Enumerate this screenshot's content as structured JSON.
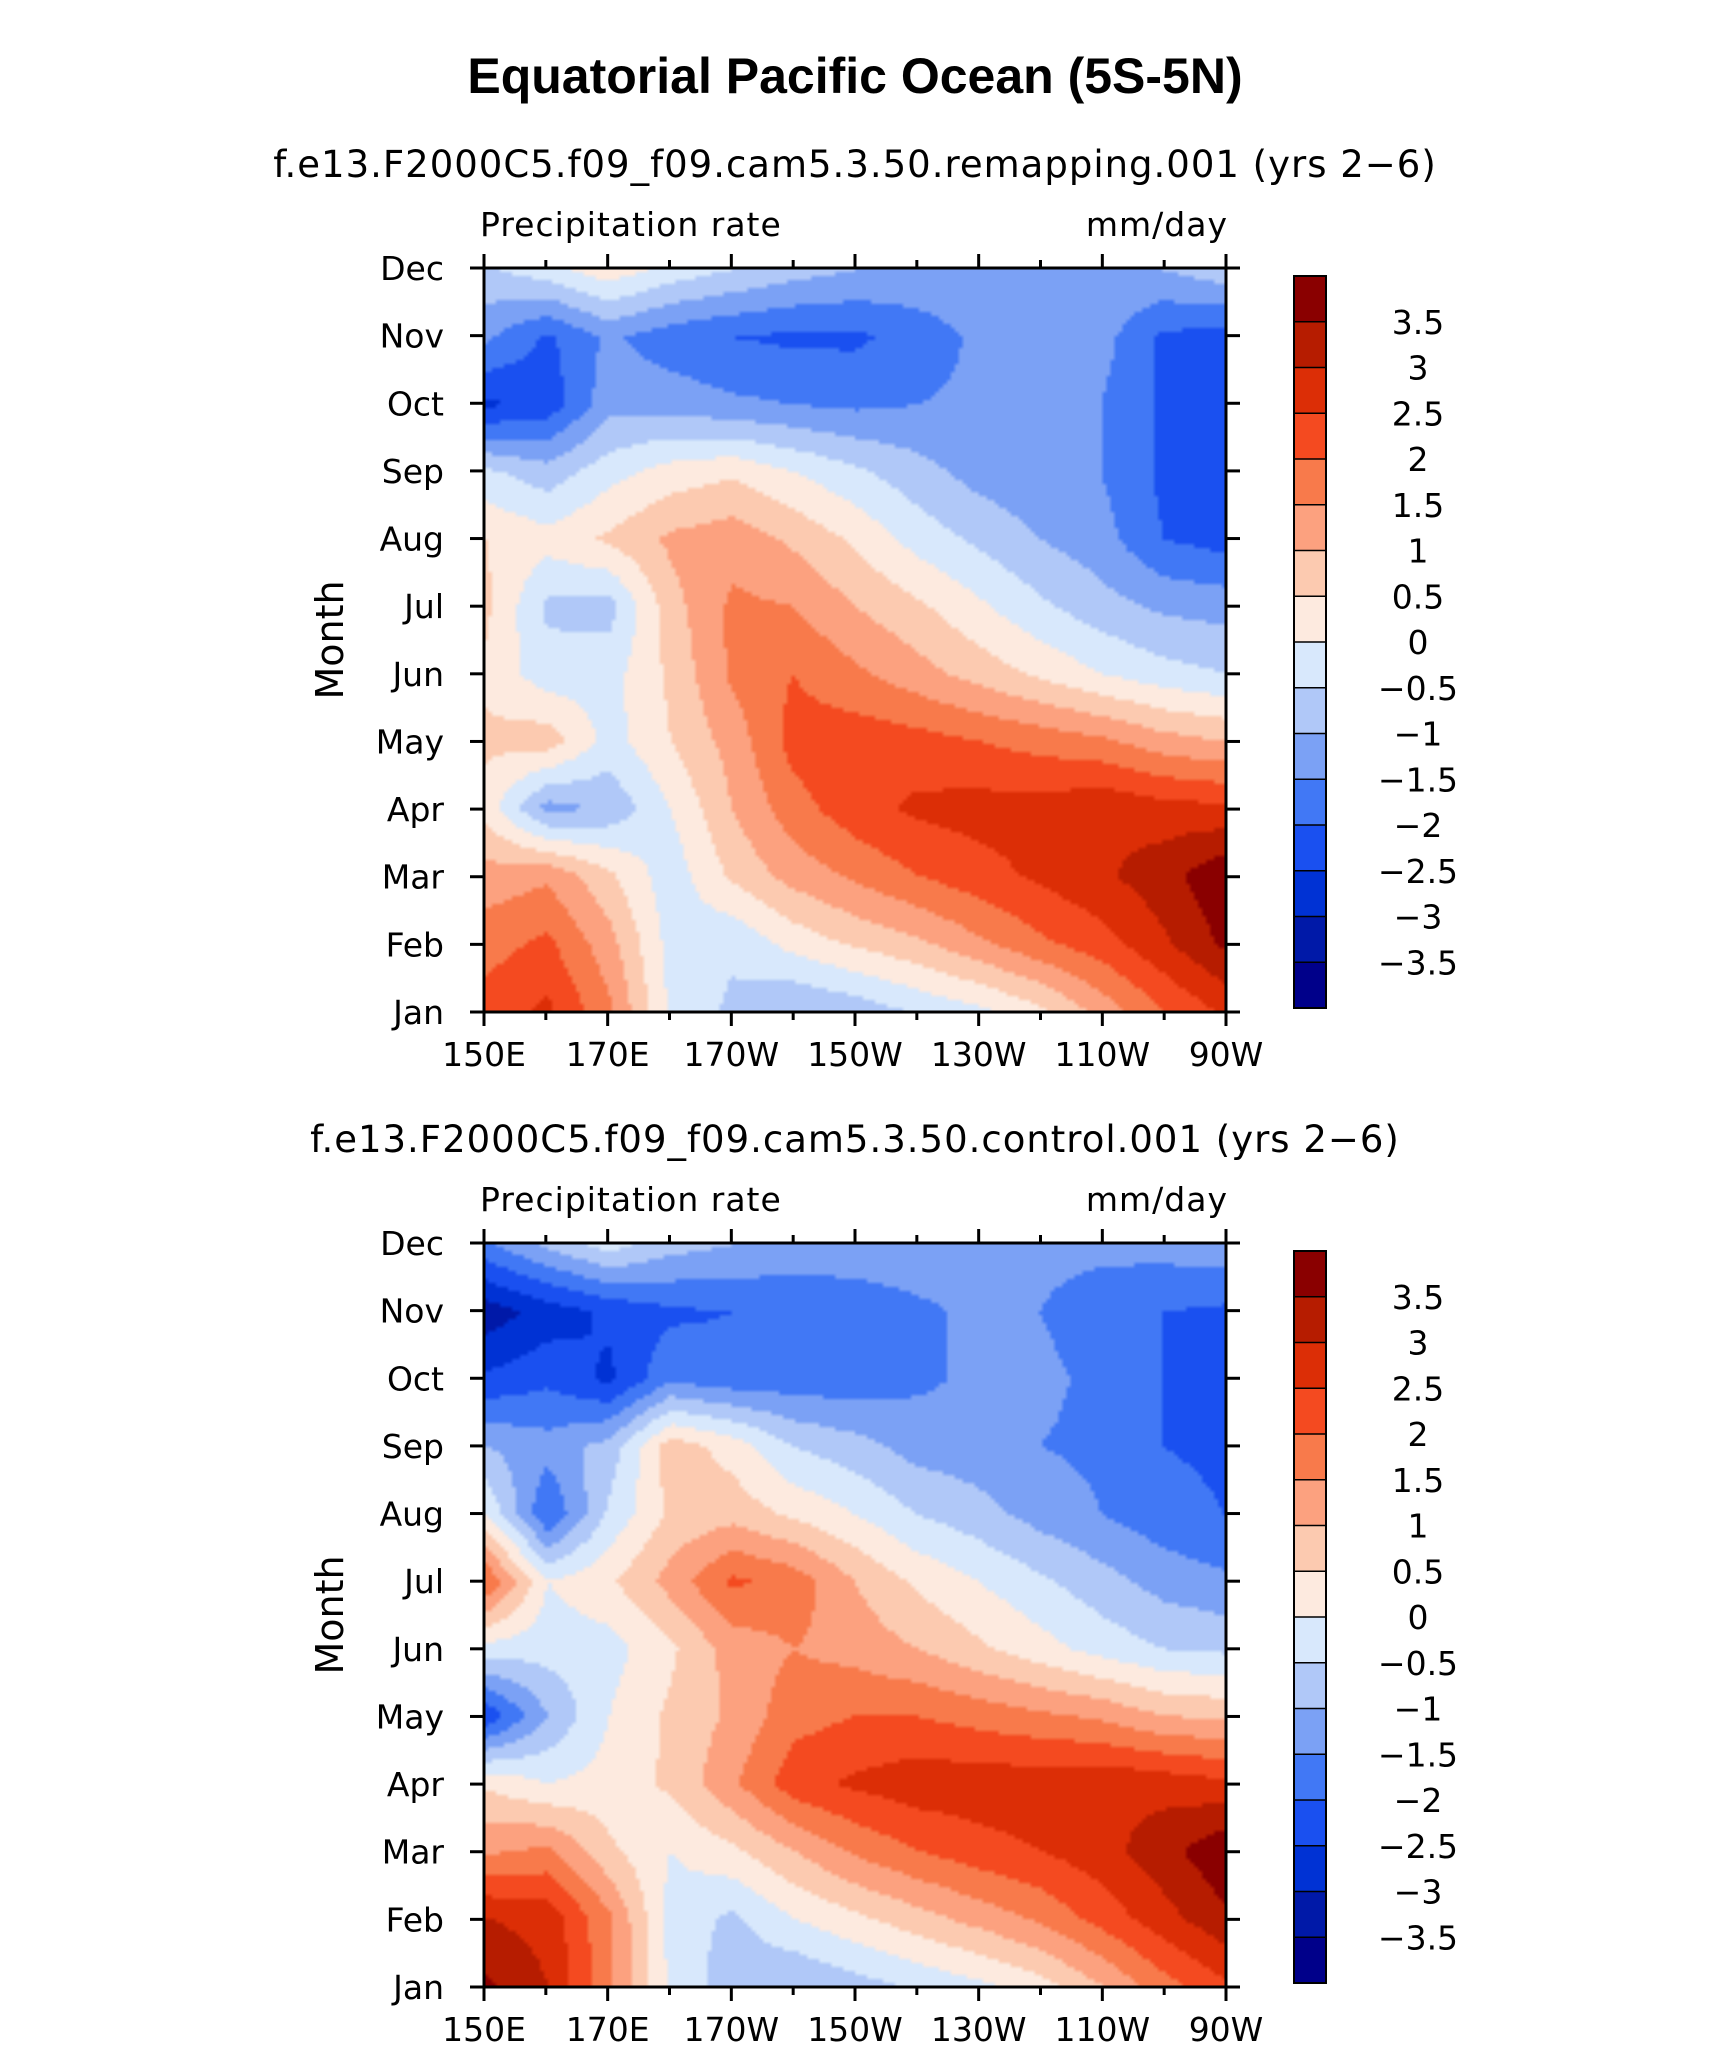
{
  "figure": {
    "title": "Equatorial Pacific Ocean (5S-5N)"
  },
  "colors": {
    "levels": [
      "#00008a",
      "#0019a8",
      "#0032d4",
      "#1a50f0",
      "#4178f5",
      "#7ba1f5",
      "#b0c8f8",
      "#d8e8fc",
      "#fdeadf",
      "#fccab0",
      "#fca17f",
      "#f87a4b",
      "#f44a20",
      "#dc2e06",
      "#b61c00",
      "#8a0000"
    ]
  },
  "chart_data": [
    {
      "type": "heatmap",
      "subtitle": "f.e13.F2000C5.f09_f09.cam5.3.50.remapping.001 (yrs 2−6)",
      "variable_label": "Precipitation rate",
      "units_label": "mm/day",
      "ylabel": "Month",
      "xlabel": "",
      "x_ticks": [
        "150E",
        "170E",
        "170W",
        "150W",
        "130W",
        "110W",
        "90W"
      ],
      "x_range": [
        "150E",
        "90W"
      ],
      "y_ticks": [
        "Jan",
        "Feb",
        "Mar",
        "Apr",
        "May",
        "Jun",
        "Jul",
        "Aug",
        "Sep",
        "Oct",
        "Nov",
        "Dec"
      ],
      "colorbar_levels": [
        -3.5,
        -3,
        -2.5,
        -2,
        -1.5,
        -1,
        -0.5,
        0,
        0.5,
        1,
        1.5,
        2,
        2.5,
        3,
        3.5
      ],
      "colorbar_labels": [
        "3.5",
        "3",
        "2.5",
        "2",
        "1.5",
        "1",
        "0.5",
        "0",
        "−0.5",
        "−1",
        "−1.5",
        "−2",
        "−2.5",
        "−3",
        "−3.5"
      ],
      "grid_lon": [
        150,
        160,
        170,
        180,
        190,
        200,
        210,
        220,
        230,
        240,
        250,
        260,
        270
      ],
      "grid_month": [
        "Jan",
        "Feb",
        "Mar",
        "Apr",
        "May",
        "Jun",
        "Jul",
        "Aug",
        "Sep",
        "Oct",
        "Nov",
        "Dec"
      ],
      "values": [
        [
          2.2,
          2.6,
          1.6,
          -0.1,
          -0.6,
          -1.0,
          -0.8,
          -0.4,
          -0.1,
          0.4,
          1.2,
          2.0,
          2.6
        ],
        [
          1.8,
          2.1,
          1.2,
          -0.2,
          -0.4,
          0.2,
          0.6,
          0.9,
          1.4,
          1.9,
          2.3,
          2.9,
          3.6
        ],
        [
          1.2,
          1.4,
          0.6,
          -0.3,
          0.6,
          1.2,
          1.6,
          2.0,
          2.3,
          2.6,
          2.9,
          3.3,
          3.9
        ],
        [
          0.3,
          -1.2,
          -0.9,
          0.0,
          1.0,
          1.8,
          2.3,
          2.6,
          2.7,
          2.7,
          2.9,
          2.7,
          2.6
        ],
        [
          0.6,
          0.8,
          -0.2,
          0.5,
          1.2,
          2.2,
          2.3,
          2.2,
          2.0,
          1.8,
          1.6,
          1.2,
          1.0
        ],
        [
          0.4,
          -0.3,
          -0.2,
          0.6,
          1.6,
          2.0,
          1.6,
          1.2,
          0.8,
          0.4,
          0.0,
          -0.3,
          -0.5
        ],
        [
          0.6,
          -0.6,
          -0.7,
          0.8,
          1.6,
          1.5,
          1.0,
          0.6,
          0.1,
          -0.4,
          -0.8,
          -1.1,
          -1.2
        ],
        [
          0.5,
          0.2,
          0.6,
          1.1,
          1.3,
          0.9,
          0.4,
          -0.2,
          -0.6,
          -1.0,
          -1.3,
          -2.0,
          -2.2
        ],
        [
          -0.4,
          -0.8,
          -0.2,
          0.2,
          0.4,
          0.0,
          -0.4,
          -0.8,
          -1.2,
          -1.4,
          -1.5,
          -2.1,
          -2.3
        ],
        [
          -2.6,
          -2.3,
          -1.2,
          -1.2,
          -1.4,
          -1.5,
          -1.6,
          -1.5,
          -1.4,
          -1.4,
          -1.5,
          -2.1,
          -2.3
        ],
        [
          -1.4,
          -2.1,
          -1.4,
          -1.8,
          -2.0,
          -2.1,
          -2.1,
          -1.8,
          -1.4,
          -1.3,
          -1.3,
          -2.1,
          -2.2
        ],
        [
          -0.6,
          -0.2,
          0.3,
          -0.2,
          -0.5,
          -0.8,
          -1.0,
          -1.1,
          -1.1,
          -1.1,
          -1.1,
          -1.0,
          -0.7
        ]
      ]
    },
    {
      "type": "heatmap",
      "subtitle": "f.e13.F2000C5.f09_f09.cam5.3.50.control.001 (yrs 2−6)",
      "variable_label": "Precipitation rate",
      "units_label": "mm/day",
      "ylabel": "Month",
      "xlabel": "",
      "x_ticks": [
        "150E",
        "170E",
        "170W",
        "150W",
        "130W",
        "110W",
        "90W"
      ],
      "x_range": [
        "150E",
        "90W"
      ],
      "y_ticks": [
        "Jan",
        "Feb",
        "Mar",
        "Apr",
        "May",
        "Jun",
        "Jul",
        "Aug",
        "Sep",
        "Oct",
        "Nov",
        "Dec"
      ],
      "colorbar_levels": [
        -3.5,
        -3,
        -2.5,
        -2,
        -1.5,
        -1,
        -0.5,
        0,
        0.5,
        1,
        1.5,
        2,
        2.5,
        3,
        3.5
      ],
      "colorbar_labels": [
        "3.5",
        "3",
        "2.5",
        "2",
        "1.5",
        "1",
        "0.5",
        "0",
        "−0.5",
        "−1",
        "−1.5",
        "−2",
        "−2.5",
        "−3",
        "−3.5"
      ],
      "grid_lon": [
        150,
        160,
        170,
        180,
        190,
        200,
        210,
        220,
        230,
        240,
        250,
        260,
        270
      ],
      "grid_month": [
        "Jan",
        "Feb",
        "Mar",
        "Apr",
        "May",
        "Jun",
        "Jul",
        "Aug",
        "Sep",
        "Oct",
        "Nov",
        "Dec"
      ],
      "values": [
        [
          3.6,
          3.0,
          1.6,
          -0.1,
          -0.8,
          -1.0,
          -0.7,
          -0.4,
          -0.1,
          0.3,
          1.0,
          1.8,
          2.4
        ],
        [
          3.0,
          2.8,
          1.6,
          -0.2,
          -0.6,
          0.0,
          0.4,
          0.8,
          1.2,
          1.6,
          2.2,
          2.8,
          3.4
        ],
        [
          1.4,
          1.6,
          0.6,
          0.0,
          0.4,
          1.0,
          1.6,
          2.0,
          2.3,
          2.5,
          2.8,
          3.3,
          3.9
        ],
        [
          0.4,
          0.0,
          0.2,
          0.6,
          1.4,
          2.3,
          2.6,
          2.8,
          2.8,
          2.8,
          2.9,
          2.8,
          2.6
        ],
        [
          -2.4,
          -1.0,
          0.0,
          0.6,
          1.1,
          1.8,
          2.0,
          2.0,
          1.8,
          1.6,
          1.4,
          1.0,
          0.9
        ],
        [
          -0.2,
          -0.3,
          -0.2,
          0.4,
          1.2,
          1.5,
          1.3,
          1.0,
          0.6,
          0.2,
          -0.2,
          -0.5,
          -0.6
        ],
        [
          2.0,
          0.0,
          0.4,
          1.2,
          2.1,
          1.8,
          1.0,
          0.4,
          0.0,
          -0.4,
          -0.8,
          -1.2,
          -1.4
        ],
        [
          0.0,
          -2.0,
          -0.4,
          0.6,
          0.8,
          0.4,
          0.0,
          -0.5,
          -0.8,
          -1.2,
          -1.5,
          -1.8,
          -2.0
        ],
        [
          -1.0,
          -1.3,
          -0.8,
          0.8,
          0.3,
          -0.5,
          -0.8,
          -1.2,
          -1.3,
          -1.5,
          -1.6,
          -2.0,
          -2.1
        ],
        [
          -2.4,
          -2.1,
          -2.6,
          -1.6,
          -1.8,
          -1.8,
          -1.8,
          -1.6,
          -1.4,
          -1.4,
          -1.6,
          -2.0,
          -2.2
        ],
        [
          -3.3,
          -2.8,
          -2.4,
          -2.1,
          -2.0,
          -2.0,
          -1.8,
          -1.6,
          -1.4,
          -1.5,
          -1.7,
          -2.0,
          -2.1
        ],
        [
          -1.6,
          -0.9,
          -0.3,
          -0.8,
          -1.0,
          -1.1,
          -1.2,
          -1.2,
          -1.3,
          -1.4,
          -1.4,
          -1.3,
          -1.2
        ]
      ]
    }
  ]
}
